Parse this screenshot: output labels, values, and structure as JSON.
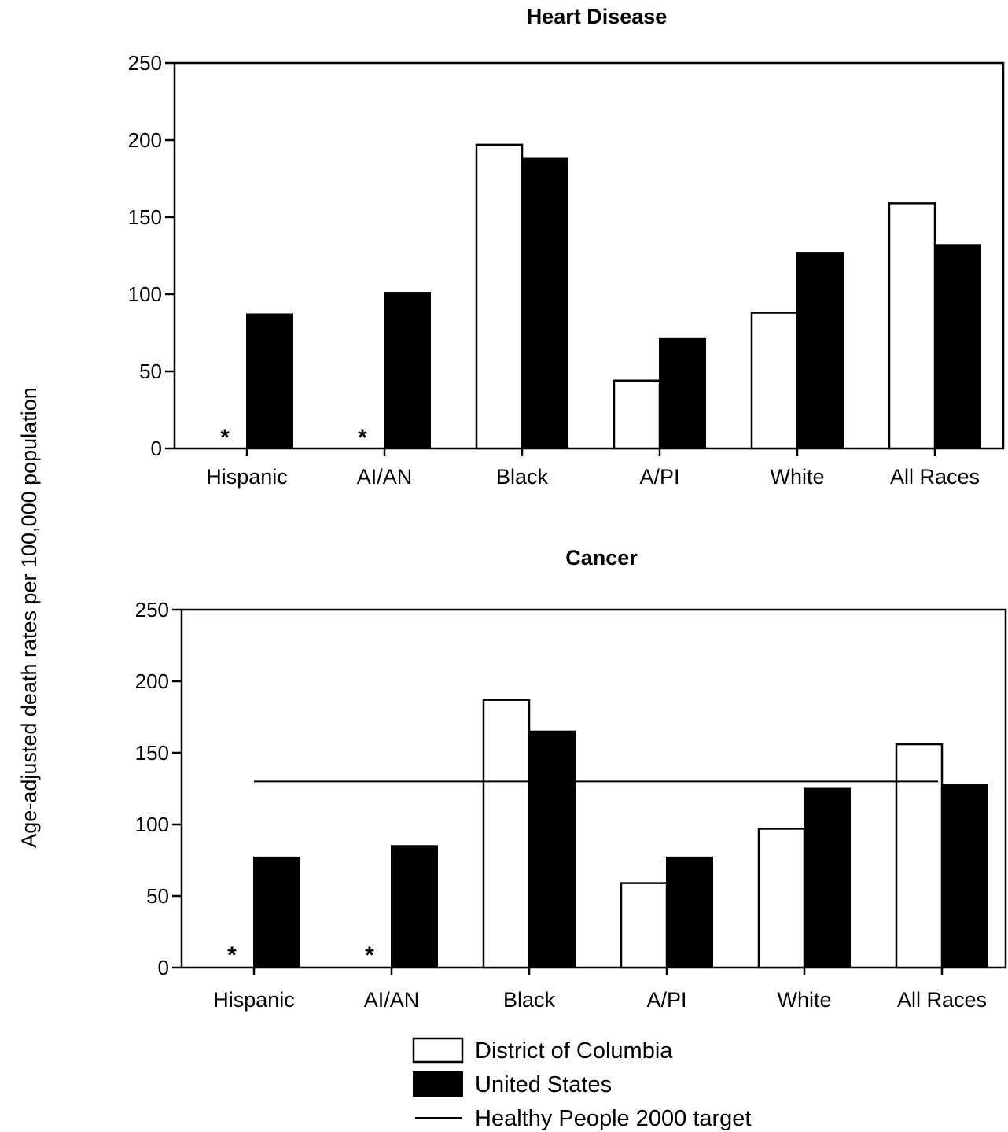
{
  "chart_data": {
    "ylabel": "Age-adjusted death rates per 100,000 population",
    "legend": [
      {
        "label": "District of Columbia",
        "key": "dc",
        "swatch": "hollow",
        "color": "#ffffff"
      },
      {
        "label": "United States",
        "key": "us",
        "swatch": "filled",
        "color": "#000000"
      },
      {
        "label": "Healthy People 2000 target",
        "key": "target",
        "swatch": "line",
        "color": "#000000"
      }
    ],
    "legend_position": "bottom-center",
    "missing_marker": "*",
    "charts": [
      {
        "type": "bar",
        "title": "Heart Disease",
        "categories": [
          "Hispanic",
          "AI/AN",
          "Black",
          "A/PI",
          "White",
          "All Races"
        ],
        "ylim": [
          0,
          250
        ],
        "yticks": [
          0,
          50,
          100,
          150,
          200,
          250
        ],
        "grid": false,
        "series": [
          {
            "name": "District of Columbia",
            "values": [
              null,
              null,
              197,
              44,
              88,
              159
            ]
          },
          {
            "name": "United States",
            "values": [
              87,
              101,
              188,
              71,
              127,
              132
            ]
          }
        ],
        "target": null
      },
      {
        "type": "bar",
        "title": "Cancer",
        "categories": [
          "Hispanic",
          "AI/AN",
          "Black",
          "A/PI",
          "White",
          "All Races"
        ],
        "ylim": [
          0,
          250
        ],
        "yticks": [
          0,
          50,
          100,
          150,
          200,
          250
        ],
        "grid": false,
        "series": [
          {
            "name": "District of Columbia",
            "values": [
              null,
              null,
              187,
              59,
              97,
              156
            ]
          },
          {
            "name": "United States",
            "values": [
              77,
              85,
              165,
              77,
              125,
              128
            ]
          }
        ],
        "target": 130
      }
    ]
  }
}
